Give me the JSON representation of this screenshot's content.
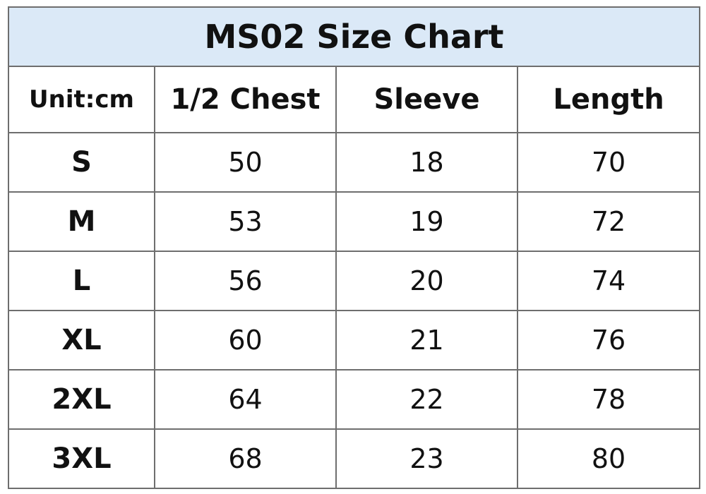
{
  "title": "MS02 Size Chart",
  "headers": [
    "Unit:cm",
    "1/2 Chest",
    "Sleeve",
    "Length"
  ],
  "rows": [
    {
      "size": "S",
      "chest": "50",
      "sleeve": "18",
      "length": "70"
    },
    {
      "size": "M",
      "chest": "53",
      "sleeve": "19",
      "length": "72"
    },
    {
      "size": "L",
      "chest": "56",
      "sleeve": "20",
      "length": "74"
    },
    {
      "size": "XL",
      "chest": "60",
      "sleeve": "21",
      "length": "76"
    },
    {
      "size": "2XL",
      "chest": "64",
      "sleeve": "22",
      "length": "78"
    },
    {
      "size": "3XL",
      "chest": "68",
      "sleeve": "23",
      "length": "80"
    }
  ],
  "colors": {
    "title_background": "#dbe9f7",
    "border": "#6e6e6e",
    "text": "#111111"
  }
}
